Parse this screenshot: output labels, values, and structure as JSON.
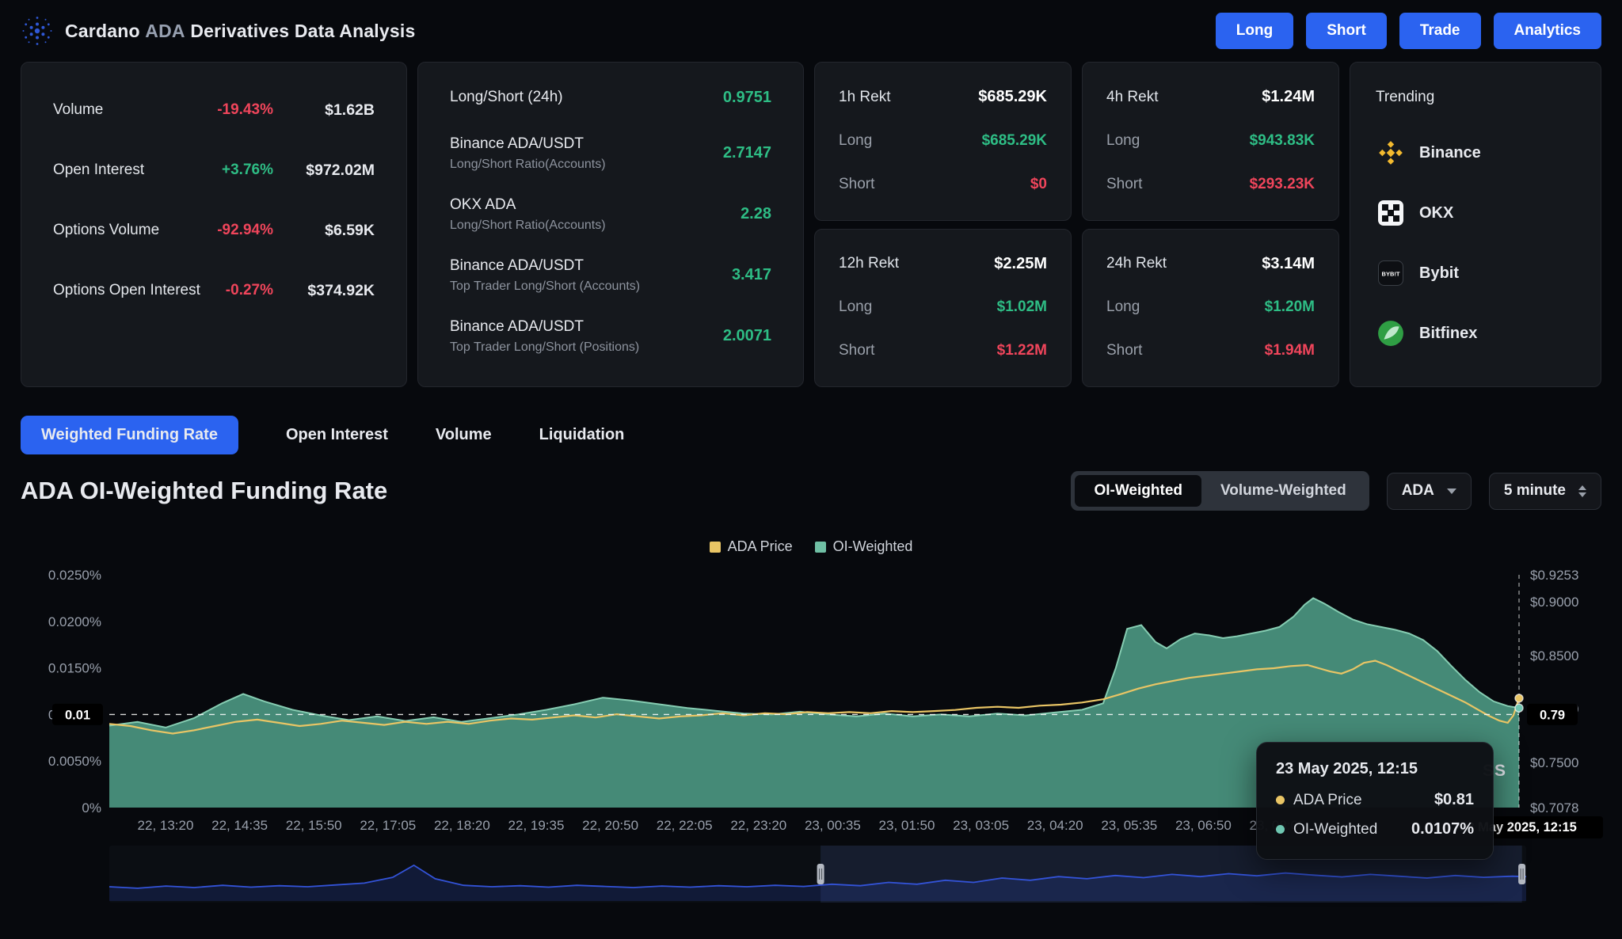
{
  "header": {
    "title": {
      "prefix": "Cardano",
      "accent": "ADA",
      "suffix": "Derivatives Data Analysis"
    },
    "nav_buttons": [
      "Long",
      "Short",
      "Trade",
      "Analytics"
    ],
    "accent_color": "#2b63f0"
  },
  "stats_card": {
    "rows": [
      {
        "label": "Volume",
        "pct": "-19.43%",
        "dir": "down",
        "value": "$1.62B"
      },
      {
        "label": "Open Interest",
        "pct": "+3.76%",
        "dir": "up",
        "value": "$972.02M"
      },
      {
        "label": "Options Volume",
        "pct": "-92.94%",
        "dir": "down",
        "value": "$6.59K"
      },
      {
        "label": "Options Open Interest",
        "pct": "-0.27%",
        "dir": "down",
        "value": "$374.92K"
      }
    ]
  },
  "ratio_card": {
    "header": {
      "label": "Long/Short (24h)",
      "value": "0.9751"
    },
    "rows": [
      {
        "main": "Binance ADA/USDT",
        "sub": "Long/Short Ratio(Accounts)",
        "value": "2.7147"
      },
      {
        "main": "OKX ADA",
        "sub": "Long/Short Ratio(Accounts)",
        "value": "2.28"
      },
      {
        "main": "Binance ADA/USDT",
        "sub": "Top Trader Long/Short (Accounts)",
        "value": "3.417"
      },
      {
        "main": "Binance ADA/USDT",
        "sub": "Top Trader Long/Short (Positions)",
        "value": "2.0071"
      }
    ]
  },
  "rekt_labels": {
    "long": "Long",
    "short": "Short"
  },
  "rekt_cards": [
    {
      "title": "1h Rekt",
      "total": "$685.29K",
      "long": "$685.29K",
      "short": "$0"
    },
    {
      "title": "4h Rekt",
      "total": "$1.24M",
      "long": "$943.83K",
      "short": "$293.23K"
    },
    {
      "title": "12h Rekt",
      "total": "$2.25M",
      "long": "$1.02M",
      "short": "$1.22M"
    },
    {
      "title": "24h Rekt",
      "total": "$3.14M",
      "long": "$1.20M",
      "short": "$1.94M"
    }
  ],
  "trending": {
    "title": "Trending",
    "items": [
      {
        "name": "Binance"
      },
      {
        "name": "OKX"
      },
      {
        "name": "Bybit"
      },
      {
        "name": "Bitfinex"
      }
    ]
  },
  "tabs": [
    {
      "label": "Weighted Funding Rate",
      "active": true
    },
    {
      "label": "Open Interest",
      "active": false
    },
    {
      "label": "Volume",
      "active": false
    },
    {
      "label": "Liquidation",
      "active": false
    }
  ],
  "section": {
    "title": "ADA OI-Weighted Funding Rate",
    "weight_toggle": [
      "OI-Weighted",
      "Volume-Weighted"
    ],
    "active_toggle": "OI-Weighted",
    "pair": "ADA",
    "interval": "5 minute"
  },
  "chart_data": {
    "type": "line",
    "title": "ADA OI-Weighted Funding Rate",
    "legend": [
      {
        "label": "ADA Price",
        "color": "#e9c565"
      },
      {
        "label": "OI-Weighted",
        "color": "#6fbfa4"
      }
    ],
    "left_axis": {
      "min": 0,
      "max": 0.025,
      "ticks": [
        {
          "label": "0.0250%",
          "value": 0.025
        },
        {
          "label": "0.0200%",
          "value": 0.02
        },
        {
          "label": "0.0150%",
          "value": 0.015
        },
        {
          "label": "0.0100%",
          "value": 0.01
        },
        {
          "label": "0.0050%",
          "value": 0.005
        },
        {
          "label": "0%",
          "value": 0
        }
      ]
    },
    "right_axis": {
      "min": 0.7078,
      "max": 0.9253,
      "ticks": [
        {
          "label": "$0.9253",
          "value": 0.9253
        },
        {
          "label": "$0.9000",
          "value": 0.9
        },
        {
          "label": "$0.8500",
          "value": 0.85
        },
        {
          "label": "$0.8000",
          "value": 0.8
        },
        {
          "label": "$0.7500",
          "value": 0.75
        },
        {
          "label": "$0.7078",
          "value": 0.7078
        }
      ]
    },
    "x_ticks": [
      "22, 13:20",
      "22, 14:35",
      "22, 15:50",
      "22, 17:05",
      "22, 18:20",
      "22, 19:35",
      "22, 20:50",
      "22, 22:05",
      "22, 23:20",
      "23, 00:35",
      "23, 01:50",
      "23, 03:05",
      "23, 04:20",
      "23, 05:35",
      "23, 06:50",
      "23, 08:05"
    ],
    "series": [
      {
        "name": "ADA Price",
        "axis": "right",
        "color": "#e9c565",
        "points": [
          [
            0.0,
            0.786
          ],
          [
            0.015,
            0.784
          ],
          [
            0.03,
            0.78
          ],
          [
            0.045,
            0.777
          ],
          [
            0.06,
            0.78
          ],
          [
            0.075,
            0.784
          ],
          [
            0.09,
            0.788
          ],
          [
            0.105,
            0.79
          ],
          [
            0.12,
            0.787
          ],
          [
            0.135,
            0.784
          ],
          [
            0.15,
            0.786
          ],
          [
            0.165,
            0.789
          ],
          [
            0.18,
            0.787
          ],
          [
            0.195,
            0.785
          ],
          [
            0.21,
            0.788
          ],
          [
            0.225,
            0.786
          ],
          [
            0.24,
            0.788
          ],
          [
            0.255,
            0.786
          ],
          [
            0.27,
            0.789
          ],
          [
            0.285,
            0.791
          ],
          [
            0.3,
            0.79
          ],
          [
            0.315,
            0.792
          ],
          [
            0.33,
            0.794
          ],
          [
            0.345,
            0.792
          ],
          [
            0.36,
            0.795
          ],
          [
            0.375,
            0.793
          ],
          [
            0.39,
            0.791
          ],
          [
            0.405,
            0.793
          ],
          [
            0.42,
            0.794
          ],
          [
            0.435,
            0.796
          ],
          [
            0.45,
            0.794
          ],
          [
            0.465,
            0.796
          ],
          [
            0.48,
            0.795
          ],
          [
            0.495,
            0.797
          ],
          [
            0.51,
            0.796
          ],
          [
            0.525,
            0.797
          ],
          [
            0.54,
            0.796
          ],
          [
            0.555,
            0.798
          ],
          [
            0.57,
            0.797
          ],
          [
            0.585,
            0.798
          ],
          [
            0.6,
            0.799
          ],
          [
            0.615,
            0.801
          ],
          [
            0.63,
            0.802
          ],
          [
            0.645,
            0.801
          ],
          [
            0.66,
            0.803
          ],
          [
            0.675,
            0.804
          ],
          [
            0.69,
            0.806
          ],
          [
            0.705,
            0.809
          ],
          [
            0.718,
            0.814
          ],
          [
            0.73,
            0.819
          ],
          [
            0.742,
            0.823
          ],
          [
            0.754,
            0.826
          ],
          [
            0.766,
            0.829
          ],
          [
            0.778,
            0.831
          ],
          [
            0.79,
            0.833
          ],
          [
            0.802,
            0.835
          ],
          [
            0.814,
            0.837
          ],
          [
            0.826,
            0.838
          ],
          [
            0.838,
            0.84
          ],
          [
            0.85,
            0.841
          ],
          [
            0.858,
            0.838
          ],
          [
            0.866,
            0.835
          ],
          [
            0.874,
            0.833
          ],
          [
            0.882,
            0.837
          ],
          [
            0.89,
            0.843
          ],
          [
            0.898,
            0.845
          ],
          [
            0.906,
            0.841
          ],
          [
            0.914,
            0.836
          ],
          [
            0.922,
            0.831
          ],
          [
            0.93,
            0.826
          ],
          [
            0.938,
            0.821
          ],
          [
            0.946,
            0.816
          ],
          [
            0.954,
            0.811
          ],
          [
            0.962,
            0.806
          ],
          [
            0.97,
            0.8
          ],
          [
            0.978,
            0.794
          ],
          [
            0.986,
            0.789
          ],
          [
            0.992,
            0.787
          ],
          [
            0.996,
            0.794
          ],
          [
            1.0,
            0.81
          ]
        ]
      },
      {
        "name": "OI-Weighted",
        "axis": "left",
        "color": "#86cdb2",
        "fill": "#4f9c86",
        "fill_opacity": 0.88,
        "points": [
          [
            0.0,
            0.0088
          ],
          [
            0.02,
            0.0092
          ],
          [
            0.04,
            0.0086
          ],
          [
            0.06,
            0.0096
          ],
          [
            0.08,
            0.0112
          ],
          [
            0.095,
            0.0122
          ],
          [
            0.11,
            0.0114
          ],
          [
            0.13,
            0.0105
          ],
          [
            0.15,
            0.0099
          ],
          [
            0.17,
            0.0094
          ],
          [
            0.19,
            0.0098
          ],
          [
            0.21,
            0.0093
          ],
          [
            0.23,
            0.0097
          ],
          [
            0.25,
            0.0092
          ],
          [
            0.27,
            0.0096
          ],
          [
            0.29,
            0.01
          ],
          [
            0.31,
            0.0105
          ],
          [
            0.33,
            0.0111
          ],
          [
            0.35,
            0.0118
          ],
          [
            0.37,
            0.0115
          ],
          [
            0.39,
            0.0111
          ],
          [
            0.41,
            0.0107
          ],
          [
            0.43,
            0.0104
          ],
          [
            0.45,
            0.0101
          ],
          [
            0.47,
            0.01
          ],
          [
            0.49,
            0.0103
          ],
          [
            0.51,
            0.01
          ],
          [
            0.53,
            0.0098
          ],
          [
            0.55,
            0.0101
          ],
          [
            0.57,
            0.0098
          ],
          [
            0.59,
            0.01
          ],
          [
            0.61,
            0.0098
          ],
          [
            0.63,
            0.0101
          ],
          [
            0.65,
            0.0099
          ],
          [
            0.67,
            0.0102
          ],
          [
            0.69,
            0.0105
          ],
          [
            0.705,
            0.0112
          ],
          [
            0.714,
            0.015
          ],
          [
            0.722,
            0.0192
          ],
          [
            0.732,
            0.0196
          ],
          [
            0.742,
            0.0178
          ],
          [
            0.75,
            0.0171
          ],
          [
            0.76,
            0.0181
          ],
          [
            0.77,
            0.0187
          ],
          [
            0.78,
            0.0185
          ],
          [
            0.79,
            0.0182
          ],
          [
            0.8,
            0.0184
          ],
          [
            0.81,
            0.0187
          ],
          [
            0.82,
            0.019
          ],
          [
            0.83,
            0.0194
          ],
          [
            0.84,
            0.0205
          ],
          [
            0.848,
            0.0218
          ],
          [
            0.854,
            0.0225
          ],
          [
            0.862,
            0.0219
          ],
          [
            0.872,
            0.021
          ],
          [
            0.882,
            0.0202
          ],
          [
            0.892,
            0.0197
          ],
          [
            0.902,
            0.0194
          ],
          [
            0.912,
            0.0191
          ],
          [
            0.922,
            0.0187
          ],
          [
            0.932,
            0.018
          ],
          [
            0.942,
            0.0168
          ],
          [
            0.952,
            0.0152
          ],
          [
            0.962,
            0.0137
          ],
          [
            0.972,
            0.0124
          ],
          [
            0.982,
            0.0114
          ],
          [
            0.992,
            0.0109
          ],
          [
            1.0,
            0.0107
          ]
        ]
      }
    ],
    "current_line": {
      "funding_label": "0.01",
      "price_label": "0.79",
      "funding_value": 0.01,
      "price_value": 0.79
    },
    "crosshair_label": "23 May 2025, 12:15",
    "tooltip": {
      "title": "23 May 2025, 12:15",
      "rows": [
        {
          "name": "ADA Price",
          "value": "$0.81",
          "color": "#e9c565"
        },
        {
          "name": "OI-Weighted",
          "value": "0.0107%",
          "color": "#6fc7b2"
        }
      ]
    },
    "watermark": "SS",
    "navigator": {
      "color": "#3353d8",
      "selection": [
        0.502,
        0.997
      ],
      "points": [
        [
          0.0,
          0.26
        ],
        [
          0.02,
          0.22
        ],
        [
          0.04,
          0.28
        ],
        [
          0.06,
          0.24
        ],
        [
          0.08,
          0.3
        ],
        [
          0.1,
          0.25
        ],
        [
          0.12,
          0.29
        ],
        [
          0.14,
          0.26
        ],
        [
          0.16,
          0.31
        ],
        [
          0.18,
          0.36
        ],
        [
          0.2,
          0.52
        ],
        [
          0.215,
          0.85
        ],
        [
          0.23,
          0.48
        ],
        [
          0.25,
          0.3
        ],
        [
          0.27,
          0.26
        ],
        [
          0.29,
          0.29
        ],
        [
          0.31,
          0.25
        ],
        [
          0.33,
          0.3
        ],
        [
          0.35,
          0.27
        ],
        [
          0.37,
          0.24
        ],
        [
          0.39,
          0.28
        ],
        [
          0.41,
          0.25
        ],
        [
          0.43,
          0.29
        ],
        [
          0.45,
          0.26
        ],
        [
          0.47,
          0.3
        ],
        [
          0.49,
          0.27
        ],
        [
          0.51,
          0.33
        ],
        [
          0.53,
          0.29
        ],
        [
          0.55,
          0.38
        ],
        [
          0.57,
          0.33
        ],
        [
          0.59,
          0.44
        ],
        [
          0.61,
          0.38
        ],
        [
          0.63,
          0.5
        ],
        [
          0.65,
          0.44
        ],
        [
          0.67,
          0.54
        ],
        [
          0.69,
          0.48
        ],
        [
          0.71,
          0.57
        ],
        [
          0.73,
          0.51
        ],
        [
          0.75,
          0.6
        ],
        [
          0.77,
          0.54
        ],
        [
          0.79,
          0.62
        ],
        [
          0.81,
          0.56
        ],
        [
          0.83,
          0.64
        ],
        [
          0.85,
          0.58
        ],
        [
          0.87,
          0.53
        ],
        [
          0.89,
          0.6
        ],
        [
          0.91,
          0.55
        ],
        [
          0.93,
          0.5
        ],
        [
          0.95,
          0.57
        ],
        [
          0.97,
          0.52
        ],
        [
          0.99,
          0.55
        ],
        [
          1.0,
          0.54
        ]
      ]
    }
  }
}
